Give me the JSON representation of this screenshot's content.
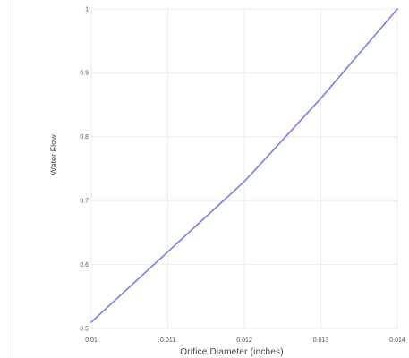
{
  "chart_data": {
    "type": "line",
    "xlabel": "Orifice Diameter (inches)",
    "ylabel": "Water Flow",
    "xlim": [
      0.01,
      0.014
    ],
    "ylim": [
      0.5,
      1.0
    ],
    "x_ticks": [
      {
        "value": 0.01,
        "label": "0.01"
      },
      {
        "value": 0.011,
        "label": "0.011"
      },
      {
        "value": 0.012,
        "label": "0.012"
      },
      {
        "value": 0.013,
        "label": "0.013"
      },
      {
        "value": 0.014,
        "label": "0.014"
      }
    ],
    "y_ticks": [
      {
        "value": 0.5,
        "label": "0.5"
      },
      {
        "value": 0.6,
        "label": "0.6"
      },
      {
        "value": 0.7,
        "label": "0.7"
      },
      {
        "value": 0.8,
        "label": "0.8"
      },
      {
        "value": 0.9,
        "label": "0.9"
      },
      {
        "value": 1.0,
        "label": "1"
      }
    ],
    "grid": true,
    "series": [
      {
        "x": [
          0.01,
          0.011,
          0.012,
          0.013,
          0.014
        ],
        "y": [
          0.51,
          0.62,
          0.73,
          0.86,
          1.0
        ],
        "color": "#7b84ee"
      }
    ]
  }
}
